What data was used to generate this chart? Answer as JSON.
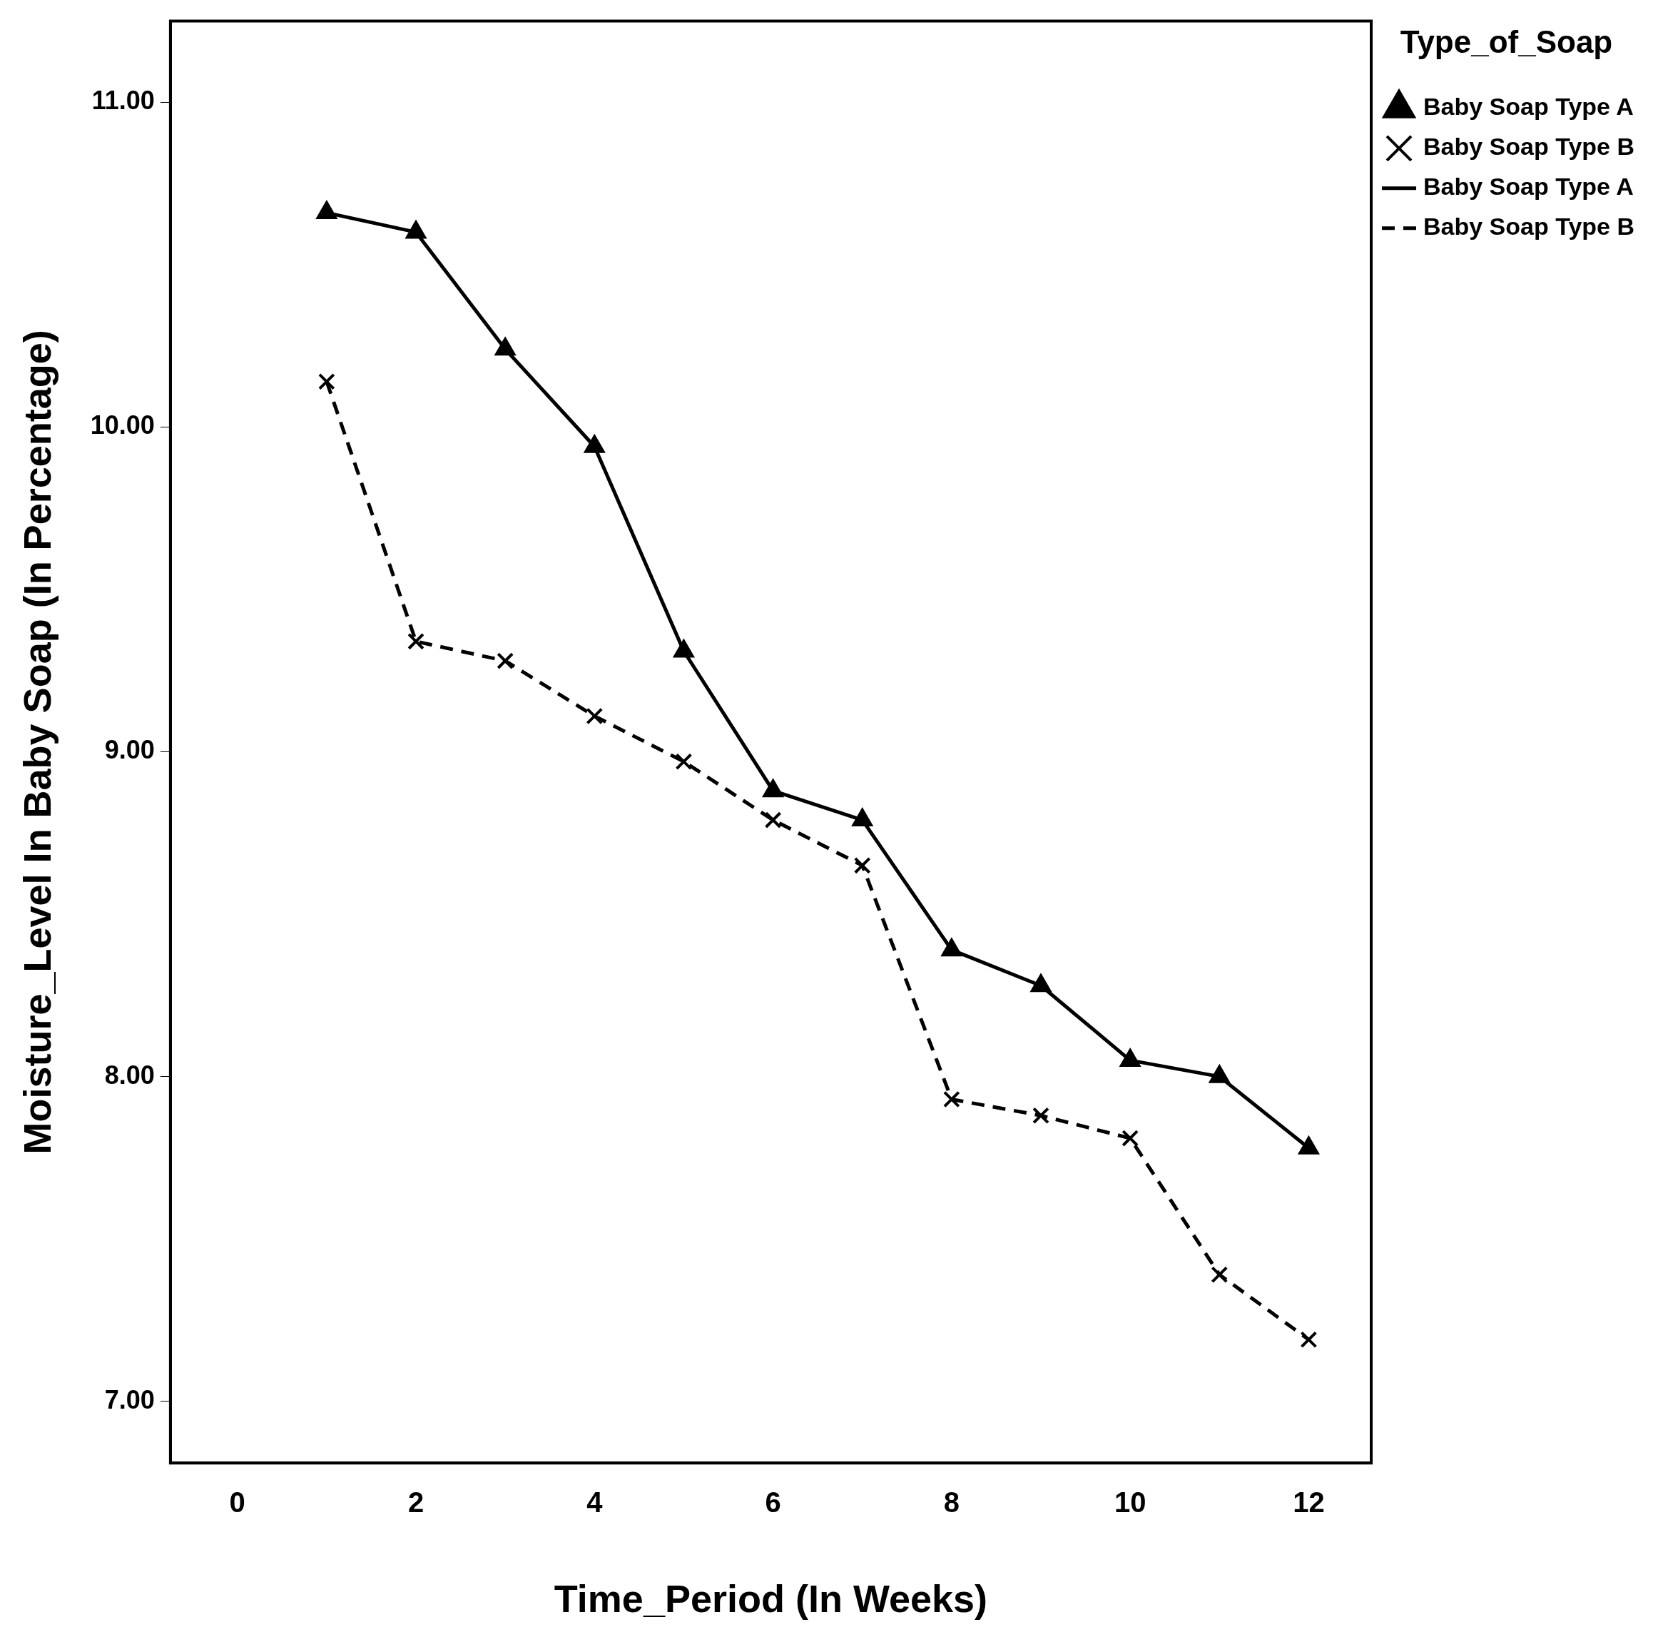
{
  "chart_data": {
    "type": "line",
    "xlabel": "Time_Period (In Weeks)",
    "ylabel": "Moisture_Level In Baby Soap (In Percentage)",
    "legend_title": "Type_of_Soap",
    "legend": "right",
    "grid": false,
    "x": [
      1,
      2,
      3,
      4,
      5,
      6,
      7,
      8,
      9,
      10,
      11,
      12
    ],
    "xlim": [
      -0.75,
      12.7
    ],
    "xticks": [
      0,
      2,
      4,
      6,
      8,
      10,
      12
    ],
    "ylim": [
      6.81,
      11.25
    ],
    "yticks": [
      {
        "value": 7,
        "label": "7.00"
      },
      {
        "value": 8,
        "label": "8.00"
      },
      {
        "value": 9,
        "label": "9.00"
      },
      {
        "value": 10,
        "label": "10.00"
      },
      {
        "value": 11,
        "label": "11.00"
      }
    ],
    "series": [
      {
        "type": "scatter",
        "name": "Baby Soap Type A",
        "color": "#000000",
        "marker": "triangle",
        "values": [
          10.66,
          10.6,
          10.24,
          9.94,
          9.31,
          8.88,
          8.79,
          8.39,
          8.28,
          8.05,
          8.0,
          7.78
        ]
      },
      {
        "type": "scatter",
        "name": "Baby Soap Type B",
        "color": "#000000",
        "marker": "cross",
        "values": [
          10.14,
          9.34,
          9.28,
          9.11,
          8.97,
          8.79,
          8.65,
          7.93,
          7.88,
          7.81,
          7.39,
          7.19
        ]
      },
      {
        "type": "line",
        "name": "Baby Soap Type A",
        "color": "#000000",
        "line_style": "solid",
        "values": [
          10.66,
          10.6,
          10.24,
          9.94,
          9.31,
          8.88,
          8.79,
          8.39,
          8.28,
          8.05,
          8.0,
          7.78
        ]
      },
      {
        "type": "line",
        "name": "Baby Soap Type B",
        "color": "#000000",
        "line_style": "dashed",
        "values": [
          10.14,
          9.34,
          9.28,
          9.11,
          8.97,
          8.79,
          8.65,
          7.93,
          7.88,
          7.81,
          7.39,
          7.19
        ]
      }
    ]
  }
}
